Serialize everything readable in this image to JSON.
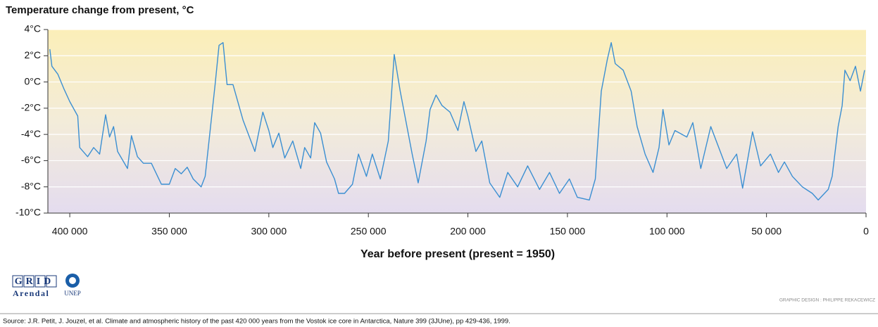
{
  "chart_data": {
    "type": "line",
    "title": "Temperature change from present, °C",
    "xlabel": "Year before present (present = 1950)",
    "logo_texts": [
      "GRID",
      "Arendal",
      "UNEP"
    ],
    "credit": "GRAPHIC DESIGN : PHILIPPE REKACEWICZ",
    "source": "Source: J.R. Petit, J. Jouzel, et al. Climate and atmospheric history of the past 420 000 years from the Vostok ice core in Antarctica, Nature 399 (3JUne), pp 429-436, 1999.",
    "color": "#3b8fd2",
    "grid": true,
    "xlim": [
      411000,
      0
    ],
    "ylim": [
      -10,
      4
    ],
    "xticks": [
      {
        "value": 400000,
        "label": "400 000"
      },
      {
        "value": 350000,
        "label": "350 000"
      },
      {
        "value": 300000,
        "label": "300 000"
      },
      {
        "value": 250000,
        "label": "250 000"
      },
      {
        "value": 200000,
        "label": "200 000"
      },
      {
        "value": 150000,
        "label": "150 000"
      },
      {
        "value": 100000,
        "label": "100 000"
      },
      {
        "value": 50000,
        "label": "50 000"
      },
      0
    ],
    "yticks": [
      {
        "value": 4,
        "label": "4°C"
      },
      {
        "value": 2,
        "label": "2°C"
      },
      {
        "value": 0,
        "label": "0°C"
      },
      {
        "value": -2,
        "label": "-2°C"
      },
      {
        "value": -4,
        "label": "-4°C"
      },
      {
        "value": -6,
        "label": "-6°C"
      },
      {
        "value": -8,
        "label": "-8°C"
      },
      {
        "value": -10,
        "label": "-10°C"
      }
    ],
    "x": [
      410000,
      409000,
      406000,
      403000,
      400000,
      396000,
      395000,
      391000,
      388000,
      385000,
      382000,
      380000,
      378000,
      376000,
      371000,
      369000,
      366000,
      363000,
      359000,
      354000,
      350000,
      347000,
      344000,
      341000,
      338000,
      334000,
      332000,
      327000,
      325000,
      323000,
      321000,
      318000,
      313000,
      307000,
      303000,
      300000,
      298000,
      295000,
      292000,
      288000,
      284000,
      282000,
      279000,
      277000,
      274000,
      271000,
      267000,
      265000,
      262000,
      258000,
      255000,
      251000,
      248000,
      244000,
      240000,
      237000,
      234000,
      228000,
      225000,
      221000,
      219000,
      216000,
      213000,
      209000,
      205000,
      202000,
      200000,
      196000,
      193000,
      189000,
      184000,
      180000,
      175000,
      170000,
      164000,
      159000,
      154000,
      149000,
      145000,
      139000,
      136000,
      133000,
      130000,
      128000,
      126000,
      122000,
      118000,
      115000,
      111000,
      107000,
      104000,
      102000,
      99000,
      96000,
      90000,
      87000,
      83000,
      78000,
      74000,
      70000,
      65000,
      62000,
      57000,
      53000,
      48000,
      44000,
      41000,
      37000,
      32000,
      27000,
      24000,
      19000,
      17000,
      14000,
      12000,
      10600,
      8000,
      5300,
      2800,
      700
    ],
    "values": [
      2.5,
      1.2,
      0.6,
      -0.5,
      -1.5,
      -2.6,
      -5,
      -5.7,
      -5,
      -5.5,
      -2.5,
      -4.2,
      -3.4,
      -5.3,
      -6.6,
      -4.1,
      -5.7,
      -6.2,
      -6.2,
      -7.8,
      -7.8,
      -6.6,
      -7,
      -6.5,
      -7.4,
      -8,
      -7.2,
      -0.2,
      2.8,
      3,
      -0.2,
      -0.2,
      -2.9,
      -5.3,
      -2.3,
      -3.7,
      -5,
      -3.9,
      -5.8,
      -4.5,
      -6.6,
      -5,
      -5.8,
      -3.1,
      -3.9,
      -6.1,
      -7.4,
      -8.5,
      -8.5,
      -7.8,
      -5.5,
      -7.2,
      -5.5,
      -7.4,
      -4.5,
      2.1,
      -0.7,
      -5.5,
      -7.7,
      -4.5,
      -2.1,
      -1,
      -1.8,
      -2.3,
      -3.7,
      -1.5,
      -2.6,
      -5.3,
      -4.5,
      -7.7,
      -8.8,
      -6.9,
      -8,
      -6.4,
      -8.2,
      -6.9,
      -8.5,
      -7.4,
      -8.8,
      -9,
      -7.4,
      -0.7,
      1.7,
      3,
      1.4,
      0.9,
      -0.7,
      -3.4,
      -5.5,
      -6.9,
      -5,
      -2.1,
      -4.8,
      -3.7,
      -4.2,
      -3.1,
      -6.6,
      -3.4,
      -5,
      -6.6,
      -5.5,
      -8.1,
      -3.8,
      -6.4,
      -5.5,
      -6.9,
      -6.1,
      -7.2,
      -8,
      -8.5,
      -9,
      -8.2,
      -7.2,
      -3.4,
      -1.8,
      0.9,
      0.1,
      1.2,
      -0.7,
      0.9
    ]
  }
}
